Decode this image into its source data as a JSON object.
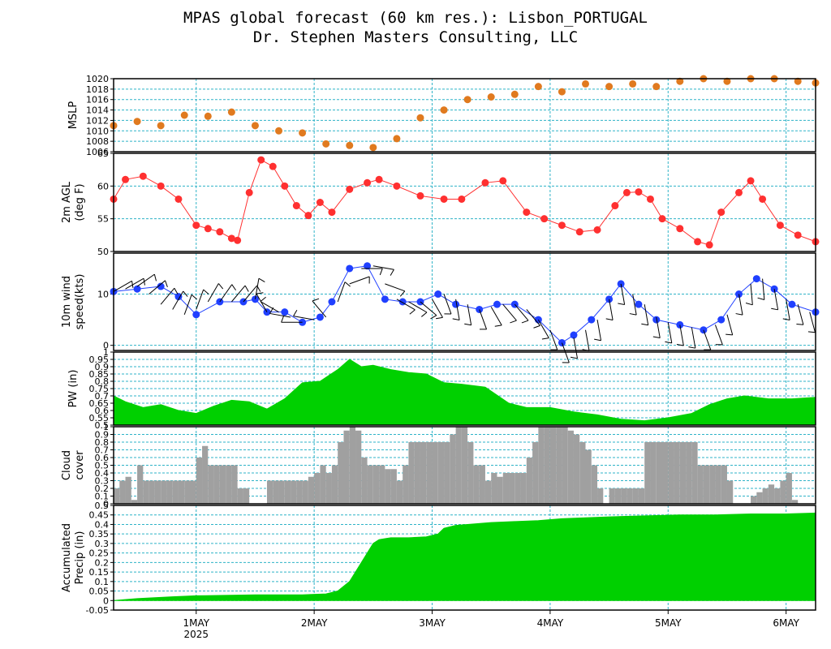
{
  "title": "MPAS global forecast (60 km res.): Lisbon_PORTUGAL",
  "subtitle": "Dr. Stephen Masters Consulting, LLC",
  "x_axis": {
    "day_labels": [
      "1MAY",
      "2MAY",
      "3MAY",
      "4MAY",
      "5MAY",
      "6MAY"
    ],
    "year_label": "2025",
    "range_days": [
      0.3,
      6.25
    ]
  },
  "chart_data": [
    {
      "type": "scatter",
      "ylabel": [
        "MSLP"
      ],
      "ylim": [
        1006,
        1020
      ],
      "yticks": [
        1006,
        1008,
        1010,
        1012,
        1014,
        1016,
        1018,
        1020
      ],
      "color": "#e07a1f",
      "x": [
        0.3,
        0.5,
        0.7,
        0.9,
        1.1,
        1.3,
        1.5,
        1.7,
        1.9,
        2.1,
        2.3,
        2.5,
        2.7,
        2.9,
        3.1,
        3.3,
        3.5,
        3.7,
        3.9,
        4.1,
        4.3,
        4.5,
        4.7,
        4.9,
        5.1,
        5.3,
        5.5,
        5.7,
        5.9,
        6.1,
        6.25
      ],
      "y": [
        1011,
        1011.8,
        1011,
        1013,
        1012.8,
        1013.6,
        1011,
        1010,
        1009.6,
        1007.5,
        1007.2,
        1006.8,
        1008.5,
        1012.5,
        1014,
        1016,
        1016.5,
        1017,
        1018.5,
        1017.5,
        1019,
        1018.5,
        1019,
        1018.5,
        1019.5,
        1020,
        1019.5,
        1020,
        1020,
        1019.5,
        1019.2
      ]
    },
    {
      "type": "line",
      "ylabel": [
        "2m AGL",
        "(deg F)"
      ],
      "ylim": [
        50,
        65
      ],
      "yticks": [
        50,
        55,
        60,
        65
      ],
      "color": "#ff3030",
      "x": [
        0.3,
        0.4,
        0.55,
        0.7,
        0.85,
        1.0,
        1.1,
        1.2,
        1.3,
        1.35,
        1.45,
        1.55,
        1.65,
        1.75,
        1.85,
        1.95,
        2.05,
        2.15,
        2.3,
        2.45,
        2.55,
        2.7,
        2.9,
        3.1,
        3.25,
        3.45,
        3.6,
        3.8,
        3.95,
        4.1,
        4.25,
        4.4,
        4.55,
        4.65,
        4.75,
        4.85,
        4.95,
        5.1,
        5.25,
        5.35,
        5.45,
        5.6,
        5.7,
        5.8,
        5.95,
        6.1,
        6.25
      ],
      "y": [
        58,
        61,
        61.5,
        60,
        58,
        54,
        53.5,
        53,
        52,
        51.7,
        59,
        64,
        63,
        60,
        57,
        55.5,
        57.5,
        56,
        59.5,
        60.5,
        61,
        60,
        58.5,
        58,
        58,
        60.5,
        60.8,
        56,
        55,
        54,
        53,
        53.3,
        57,
        59,
        59.1,
        58,
        55,
        53.5,
        51.5,
        51,
        56,
        59,
        60.8,
        58,
        54,
        52.5,
        51.5
      ]
    },
    {
      "type": "line",
      "ylabel": [
        "10m wind",
        "speed(kts)"
      ],
      "ylim": [
        -1,
        18
      ],
      "yticks": [
        0,
        10
      ],
      "color": "#2040ff",
      "x": [
        0.3,
        0.5,
        0.7,
        0.85,
        1.0,
        1.2,
        1.4,
        1.5,
        1.6,
        1.75,
        1.9,
        2.05,
        2.15,
        2.3,
        2.45,
        2.6,
        2.75,
        2.9,
        3.05,
        3.2,
        3.4,
        3.55,
        3.7,
        3.9,
        4.1,
        4.2,
        4.35,
        4.5,
        4.6,
        4.75,
        4.9,
        5.1,
        5.3,
        5.45,
        5.6,
        5.75,
        5.9,
        6.05,
        6.25
      ],
      "y": [
        10.5,
        11,
        11.5,
        9.5,
        6,
        8.5,
        8.5,
        9,
        6.5,
        6.5,
        4.5,
        5.5,
        8.5,
        15,
        15.5,
        9,
        8.5,
        8.5,
        10,
        8,
        7,
        8,
        8,
        5,
        0.5,
        2,
        5,
        9,
        12,
        8,
        5,
        4,
        3,
        5,
        10,
        13,
        11,
        8,
        6.5
      ]
    },
    {
      "type": "area",
      "ylabel": [
        "PW (in)"
      ],
      "ylim": [
        0.5,
        1.0
      ],
      "yticks": [
        0.5,
        0.55,
        0.6,
        0.65,
        0.7,
        0.75,
        0.8,
        0.85,
        0.9,
        0.95,
        1.0
      ],
      "color": "#00d000",
      "x": [
        0.3,
        0.4,
        0.55,
        0.7,
        0.85,
        1.0,
        1.15,
        1.3,
        1.45,
        1.6,
        1.75,
        1.9,
        2.05,
        2.2,
        2.3,
        2.4,
        2.5,
        2.65,
        2.8,
        2.95,
        3.1,
        3.25,
        3.45,
        3.65,
        3.8,
        4.0,
        4.2,
        4.4,
        4.6,
        4.8,
        5.0,
        5.2,
        5.35,
        5.5,
        5.65,
        5.85,
        6.05,
        6.25
      ],
      "y": [
        0.7,
        0.66,
        0.62,
        0.64,
        0.6,
        0.58,
        0.63,
        0.67,
        0.66,
        0.61,
        0.68,
        0.79,
        0.8,
        0.88,
        0.95,
        0.9,
        0.91,
        0.88,
        0.86,
        0.85,
        0.79,
        0.78,
        0.76,
        0.65,
        0.62,
        0.62,
        0.59,
        0.57,
        0.54,
        0.53,
        0.55,
        0.58,
        0.64,
        0.68,
        0.7,
        0.68,
        0.68,
        0.69
      ]
    },
    {
      "type": "bar",
      "ylabel": [
        "Cloud",
        "cover"
      ],
      "ylim": [
        0,
        1
      ],
      "yticks": [
        0,
        0.1,
        0.2,
        0.3,
        0.4,
        0.5,
        0.6,
        0.7,
        0.8,
        0.9,
        1.0
      ],
      "color": "#a0a0a0",
      "x": [
        0.3,
        0.35,
        0.4,
        0.45,
        0.5,
        0.55,
        0.6,
        0.65,
        0.7,
        0.75,
        0.8,
        0.85,
        0.9,
        0.95,
        1.0,
        1.05,
        1.1,
        1.15,
        1.2,
        1.25,
        1.3,
        1.35,
        1.4,
        1.45,
        1.5,
        1.55,
        1.6,
        1.65,
        1.7,
        1.75,
        1.8,
        1.85,
        1.9,
        1.95,
        2.0,
        2.05,
        2.1,
        2.15,
        2.2,
        2.25,
        2.3,
        2.35,
        2.4,
        2.45,
        2.5,
        2.55,
        2.6,
        2.65,
        2.7,
        2.75,
        2.8,
        2.85,
        2.9,
        2.95,
        3.0,
        3.05,
        3.1,
        3.15,
        3.2,
        3.25,
        3.3,
        3.35,
        3.4,
        3.45,
        3.5,
        3.55,
        3.6,
        3.65,
        3.7,
        3.75,
        3.8,
        3.85,
        3.9,
        3.95,
        4.0,
        4.05,
        4.1,
        4.15,
        4.2,
        4.25,
        4.3,
        4.35,
        4.4,
        4.45,
        4.5,
        4.55,
        4.6,
        4.65,
        4.7,
        4.75,
        4.8,
        4.85,
        4.9,
        4.95,
        5.0,
        5.05,
        5.1,
        5.15,
        5.2,
        5.25,
        5.3,
        5.35,
        5.4,
        5.45,
        5.5,
        5.55,
        5.6,
        5.65,
        5.7,
        5.75,
        5.8,
        5.85,
        5.9,
        5.95,
        6.0,
        6.05,
        6.1,
        6.15,
        6.2
      ],
      "y": [
        0.2,
        0.3,
        0.35,
        0.05,
        0.5,
        0.3,
        0.3,
        0.3,
        0.3,
        0.3,
        0.3,
        0.3,
        0.3,
        0.3,
        0.6,
        0.75,
        0.5,
        0.5,
        0.5,
        0.5,
        0.5,
        0.2,
        0.2,
        0.0,
        0.0,
        0.0,
        0.3,
        0.3,
        0.3,
        0.3,
        0.3,
        0.3,
        0.3,
        0.35,
        0.4,
        0.5,
        0.4,
        0.5,
        0.8,
        0.95,
        1.0,
        0.95,
        0.6,
        0.5,
        0.5,
        0.5,
        0.45,
        0.45,
        0.3,
        0.5,
        0.8,
        0.8,
        0.8,
        0.8,
        0.8,
        0.8,
        0.8,
        0.9,
        1.0,
        1.0,
        0.8,
        0.5,
        0.5,
        0.3,
        0.4,
        0.35,
        0.4,
        0.4,
        0.4,
        0.4,
        0.6,
        0.8,
        1.0,
        1.0,
        1.0,
        1.0,
        1.0,
        0.95,
        0.9,
        0.8,
        0.7,
        0.5,
        0.2,
        0.0,
        0.2,
        0.2,
        0.2,
        0.2,
        0.2,
        0.2,
        0.8,
        0.8,
        0.8,
        0.8,
        0.8,
        0.8,
        0.8,
        0.8,
        0.8,
        0.5,
        0.5,
        0.5,
        0.5,
        0.5,
        0.3,
        0.0,
        0.0,
        0.0,
        0.1,
        0.15,
        0.2,
        0.25,
        0.2,
        0.3,
        0.4,
        0.05,
        0.0,
        0.0,
        0.0
      ]
    },
    {
      "type": "area",
      "ylabel": [
        "Accumulated",
        "Precip (in)"
      ],
      "ylim": [
        -0.05,
        0.5
      ],
      "yticks": [
        -0.05,
        0.0,
        0.05,
        0.1,
        0.15,
        0.2,
        0.25,
        0.3,
        0.35,
        0.4,
        0.45,
        0.5
      ],
      "color": "#00d000",
      "x": [
        0.3,
        0.5,
        0.8,
        1.0,
        1.5,
        1.9,
        2.1,
        2.2,
        2.3,
        2.35,
        2.4,
        2.45,
        2.5,
        2.55,
        2.6,
        2.65,
        2.7,
        2.8,
        2.95,
        3.05,
        3.1,
        3.2,
        3.3,
        3.5,
        3.7,
        3.9,
        4.1,
        4.3,
        4.5,
        4.8,
        5.1,
        5.4,
        5.7,
        6.0,
        6.25
      ],
      "y": [
        0.0,
        0.01,
        0.02,
        0.025,
        0.03,
        0.03,
        0.035,
        0.05,
        0.1,
        0.15,
        0.2,
        0.25,
        0.3,
        0.32,
        0.325,
        0.33,
        0.33,
        0.33,
        0.335,
        0.35,
        0.38,
        0.395,
        0.4,
        0.41,
        0.415,
        0.42,
        0.43,
        0.435,
        0.44,
        0.445,
        0.45,
        0.45,
        0.455,
        0.455,
        0.46
      ]
    }
  ],
  "wind_barbs": {
    "x": [
      0.3,
      0.4,
      0.5,
      0.6,
      0.7,
      0.8,
      0.9,
      1.0,
      1.1,
      1.2,
      1.3,
      1.4,
      1.5,
      1.6,
      1.7,
      1.8,
      1.9,
      2.0,
      2.1,
      2.2,
      2.3,
      2.4,
      2.5,
      2.6,
      2.7,
      2.8,
      2.9,
      3.0,
      3.1,
      3.2,
      3.3,
      3.4,
      3.5,
      3.6,
      3.7,
      3.8,
      3.9,
      4.0,
      4.1,
      4.2,
      4.3,
      4.4,
      4.5,
      4.6,
      4.7,
      4.8,
      4.9,
      5.0,
      5.1,
      5.2,
      5.3,
      5.4,
      5.5,
      5.6,
      5.7,
      5.8,
      5.9,
      6.0,
      6.1,
      6.2
    ],
    "speed": [
      10.5,
      11,
      11.5,
      10,
      8,
      7,
      6,
      7,
      8.5,
      8.5,
      8.5,
      8.5,
      9,
      6.5,
      6.5,
      5.5,
      4.5,
      5,
      5.5,
      8.5,
      12,
      15,
      15.5,
      12,
      9,
      8.5,
      8.5,
      9,
      10,
      9,
      8,
      7,
      7.5,
      8,
      8,
      7,
      5,
      3,
      0.5,
      1.5,
      3,
      5,
      9,
      12,
      10,
      8,
      5.5,
      4.5,
      4,
      3.5,
      3,
      4,
      6,
      10,
      12,
      13,
      11,
      9,
      8,
      6.5
    ],
    "dir": [
      240,
      240,
      235,
      230,
      220,
      210,
      200,
      200,
      210,
      215,
      220,
      220,
      190,
      150,
      120,
      100,
      90,
      100,
      140,
      200,
      250,
      270,
      280,
      290,
      300,
      300,
      310,
      330,
      340,
      350,
      350,
      340,
      330,
      320,
      320,
      320,
      330,
      340,
      340,
      350,
      350,
      350,
      350,
      350,
      350,
      350,
      350,
      350,
      350,
      350,
      340,
      340,
      345,
      350,
      355,
      355,
      350,
      350,
      345,
      345
    ]
  }
}
